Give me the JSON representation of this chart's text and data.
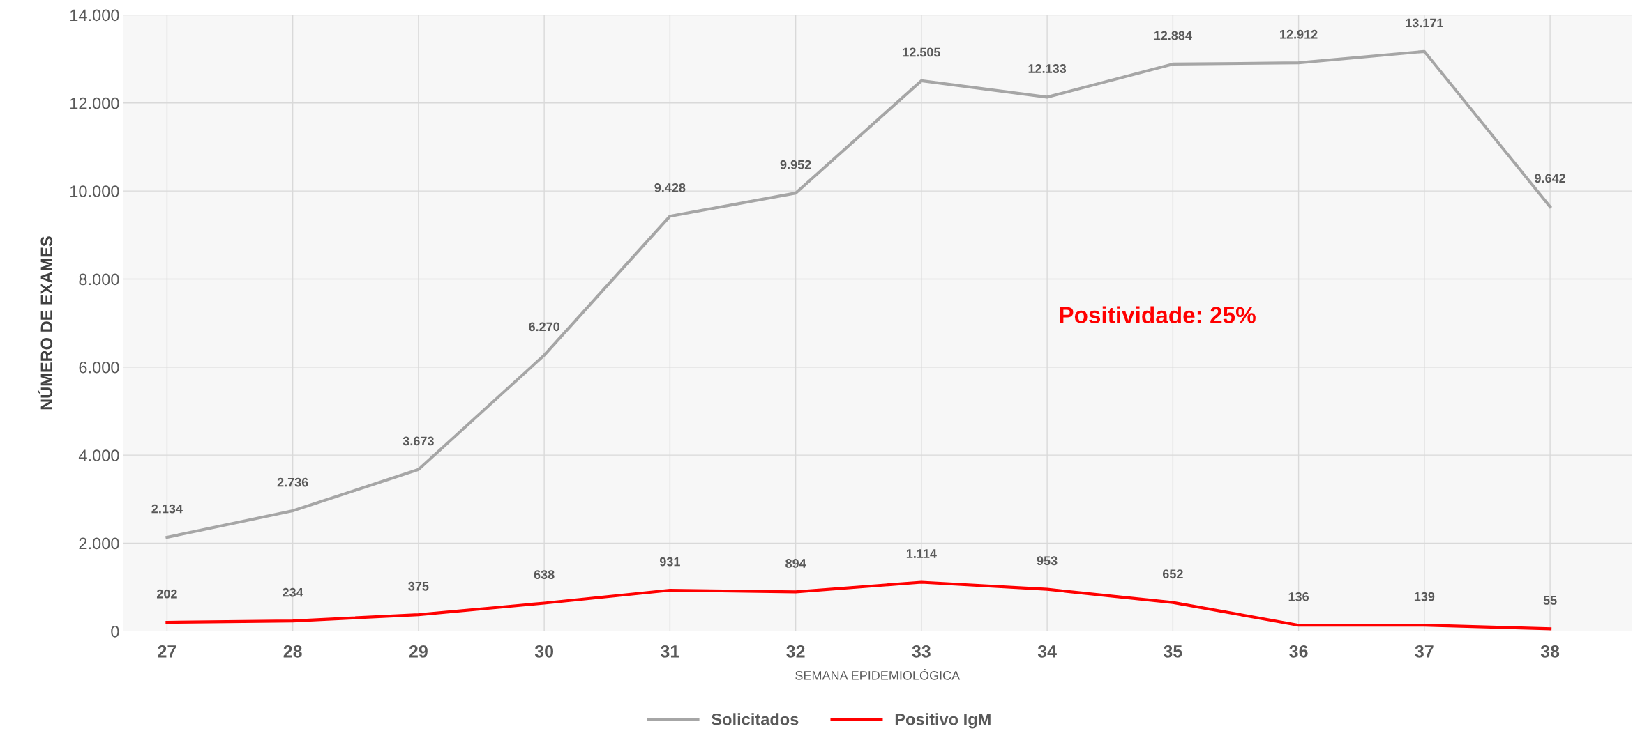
{
  "chart_data": {
    "type": "line",
    "xlabel": "SEMANA EPIDEMIOLÓGICA",
    "ylabel": "NÚMERO DE EXAMES",
    "categories": [
      "27",
      "28",
      "29",
      "30",
      "31",
      "32",
      "33",
      "34",
      "35",
      "36",
      "37",
      "38"
    ],
    "series": [
      {
        "name": "Solicitados",
        "color": "#a6a6a6",
        "values": [
          2134,
          2736,
          3673,
          6270,
          9428,
          9952,
          12505,
          12133,
          12884,
          12912,
          13171,
          9642
        ],
        "value_labels": [
          "2.134",
          "2.736",
          "3.673",
          "6.270",
          "9.428",
          "9.952",
          "12.505",
          "12.133",
          "12.884",
          "12.912",
          "13.171",
          "9.642"
        ]
      },
      {
        "name": "Positivo IgM",
        "color": "#ff0000",
        "values": [
          202,
          234,
          375,
          638,
          931,
          894,
          1114,
          953,
          652,
          136,
          139,
          55
        ],
        "value_labels": [
          "202",
          "234",
          "375",
          "638",
          "931",
          "894",
          "1.114",
          "953",
          "652",
          "136",
          "139",
          "55"
        ]
      }
    ],
    "ylim": [
      0,
      14000
    ],
    "yticks": [
      {
        "value": 0,
        "label": "0"
      },
      {
        "value": 2000,
        "label": "2.000"
      },
      {
        "value": 4000,
        "label": "4.000"
      },
      {
        "value": 6000,
        "label": "6.000"
      },
      {
        "value": 8000,
        "label": "8.000"
      },
      {
        "value": 10000,
        "label": "10.000"
      },
      {
        "value": 12000,
        "label": "12.000"
      },
      {
        "value": 14000,
        "label": "14.000"
      }
    ],
    "annotations": [
      "Positividade: 25%"
    ],
    "grid": true,
    "legend": "bottom",
    "marker": "none",
    "line_style": "solid"
  }
}
